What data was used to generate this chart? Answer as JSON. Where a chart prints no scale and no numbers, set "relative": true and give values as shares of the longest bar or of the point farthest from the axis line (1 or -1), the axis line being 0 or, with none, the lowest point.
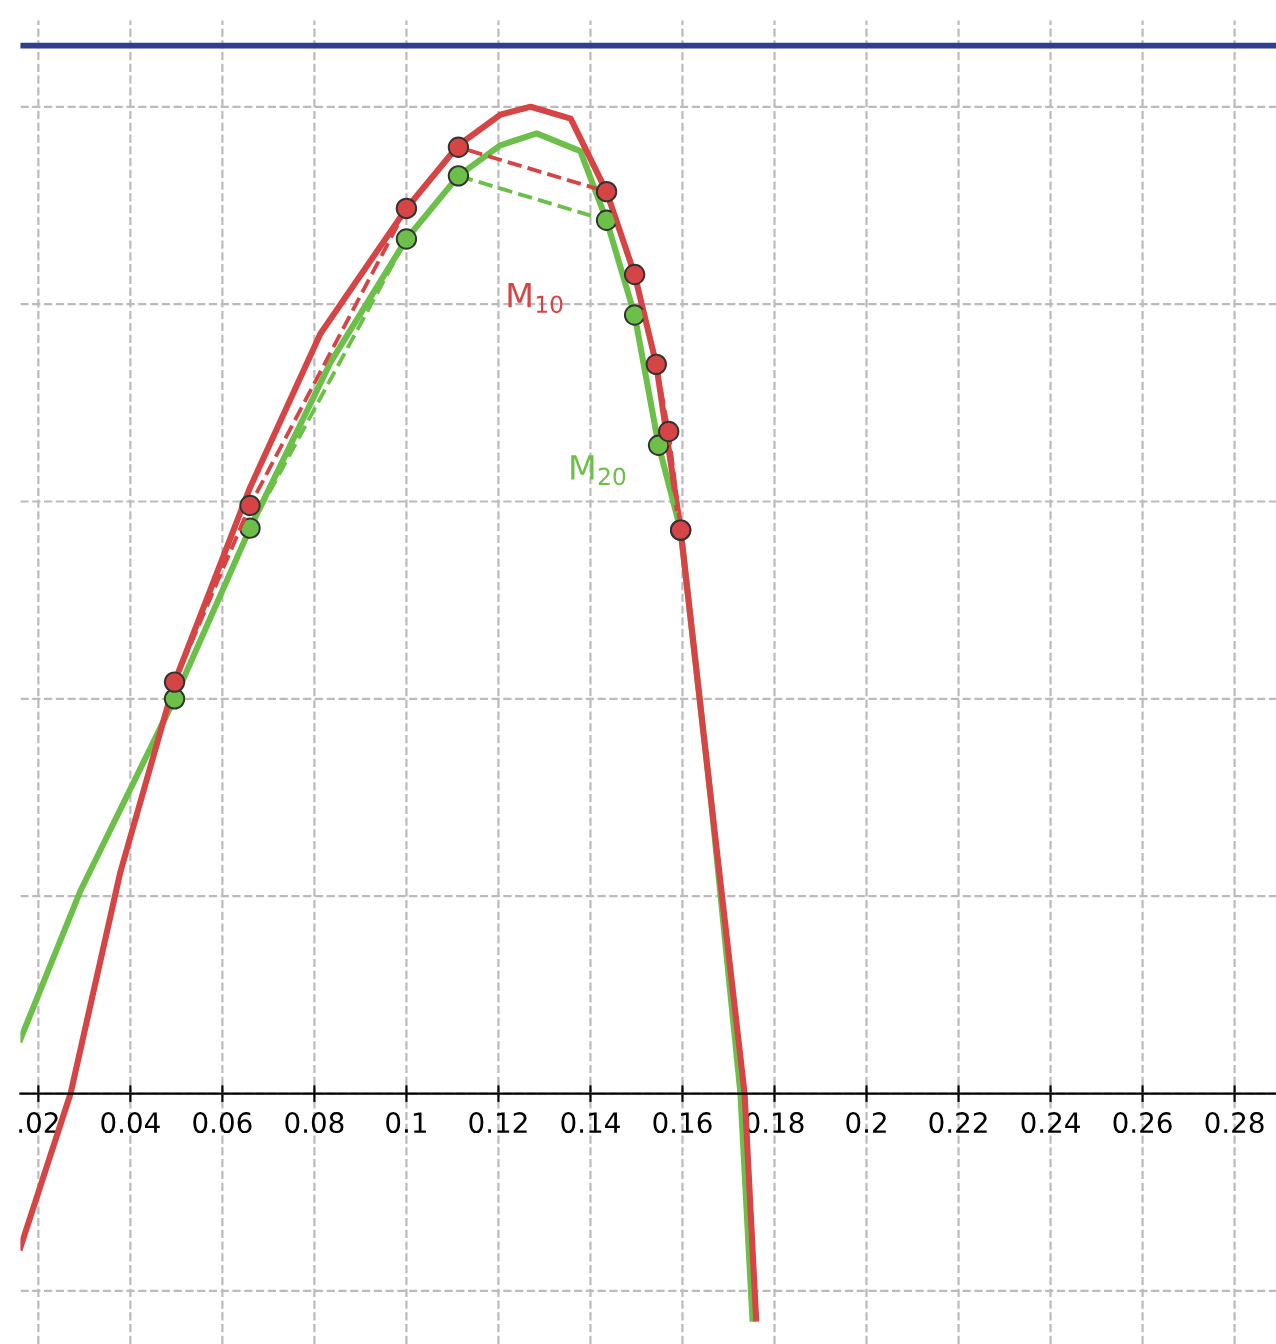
{
  "chart_data": {
    "type": "line",
    "relative": true,
    "xlim": [
      0.0161,
      0.289
    ],
    "xticks": [
      {
        "value": 0.02,
        "label": ".02"
      },
      0.04,
      0.06,
      0.08,
      0.1,
      0.12,
      0.14,
      0.16,
      0.18,
      0.2,
      0.22,
      0.24,
      0.26,
      0.28
    ],
    "grid": true,
    "tick_labels": "x",
    "series": [
      {
        "color": "#d64545",
        "line_style": "dashed",
        "marker": "circle",
        "x": [
          0.0496,
          0.066,
          0.1,
          0.1113,
          0.1435,
          0.1496,
          0.1543,
          0.157,
          0.1596
        ],
        "values": [
          0.417,
          0.596,
          0.897,
          0.959,
          0.914,
          0.83,
          0.739,
          0.671,
          0.571
        ]
      },
      {
        "color": "#6cc04a",
        "line_style": "dashed",
        "marker": "circle",
        "x": [
          0.0496,
          0.066,
          0.1,
          0.1113,
          0.1435,
          0.1496,
          0.1548,
          0.1596
        ],
        "values": [
          0.4,
          0.573,
          0.866,
          0.93,
          0.885,
          0.789,
          0.657,
          0.571
        ]
      },
      {
        "color": "#d64545",
        "line_style": "solid",
        "marker": "none",
        "x": [
          0.0161,
          0.027,
          0.0378,
          0.0496,
          0.066,
          0.0813,
          0.1,
          0.1113,
          0.1204,
          0.127,
          0.1357,
          0.1435,
          0.1496,
          0.1543,
          0.1596,
          0.1661,
          0.1735,
          0.176
        ],
        "values": [
          -0.156,
          0,
          0.224,
          0.417,
          0.614,
          0.77,
          0.897,
          0.961,
          0.992,
          1.0,
          0.988,
          0.914,
          0.83,
          0.739,
          0.571,
          0.302,
          0,
          -0.228
        ]
      },
      {
        "color": "#6cc04a",
        "line_style": "solid",
        "marker": "none",
        "x": [
          0.0161,
          0.0291,
          0.0496,
          0.066,
          0.0835,
          0.1,
          0.1113,
          0.1204,
          0.1283,
          0.1378,
          0.1435,
          0.1496,
          0.1548,
          0.1596,
          0.1661,
          0.1726,
          0.1752
        ],
        "values": [
          0.055,
          0.205,
          0.4,
          0.573,
          0.741,
          0.866,
          0.93,
          0.961,
          0.973,
          0.955,
          0.885,
          0.789,
          0.657,
          0.571,
          0.302,
          0,
          -0.228
        ]
      }
    ],
    "ref_lines": [
      {
        "axis": "y",
        "value": 1.062,
        "color": "#2f3f8f",
        "line_style": "solid"
      }
    ],
    "annotations": [
      "M$_{10}$",
      "M$_{20}$"
    ]
  }
}
